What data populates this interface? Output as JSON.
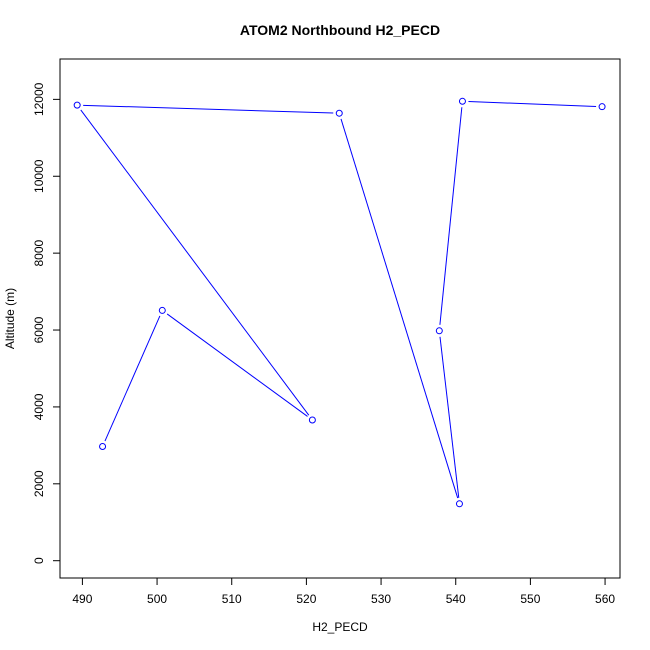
{
  "chart_data": {
    "type": "line",
    "title": "ATOM2 Northbound H2_PECD",
    "xlabel": "H2_PECD",
    "ylabel": "Altitude (m)",
    "xlim": [
      487,
      562
    ],
    "ylim": [
      -450,
      13050
    ],
    "x_ticks": [
      490,
      500,
      510,
      520,
      530,
      540,
      550,
      560
    ],
    "y_ticks": [
      0,
      2000,
      4000,
      6000,
      8000,
      10000,
      12000
    ],
    "grid": false,
    "series_color": "#0000ff",
    "series": [
      {
        "x": [
          492.7,
          500.7,
          520.8,
          489.3,
          524.4,
          540.5,
          537.8,
          540.9,
          559.6
        ],
        "y": [
          2970,
          6510,
          3660,
          11850,
          11640,
          1480,
          5980,
          11950,
          11810
        ]
      }
    ]
  }
}
